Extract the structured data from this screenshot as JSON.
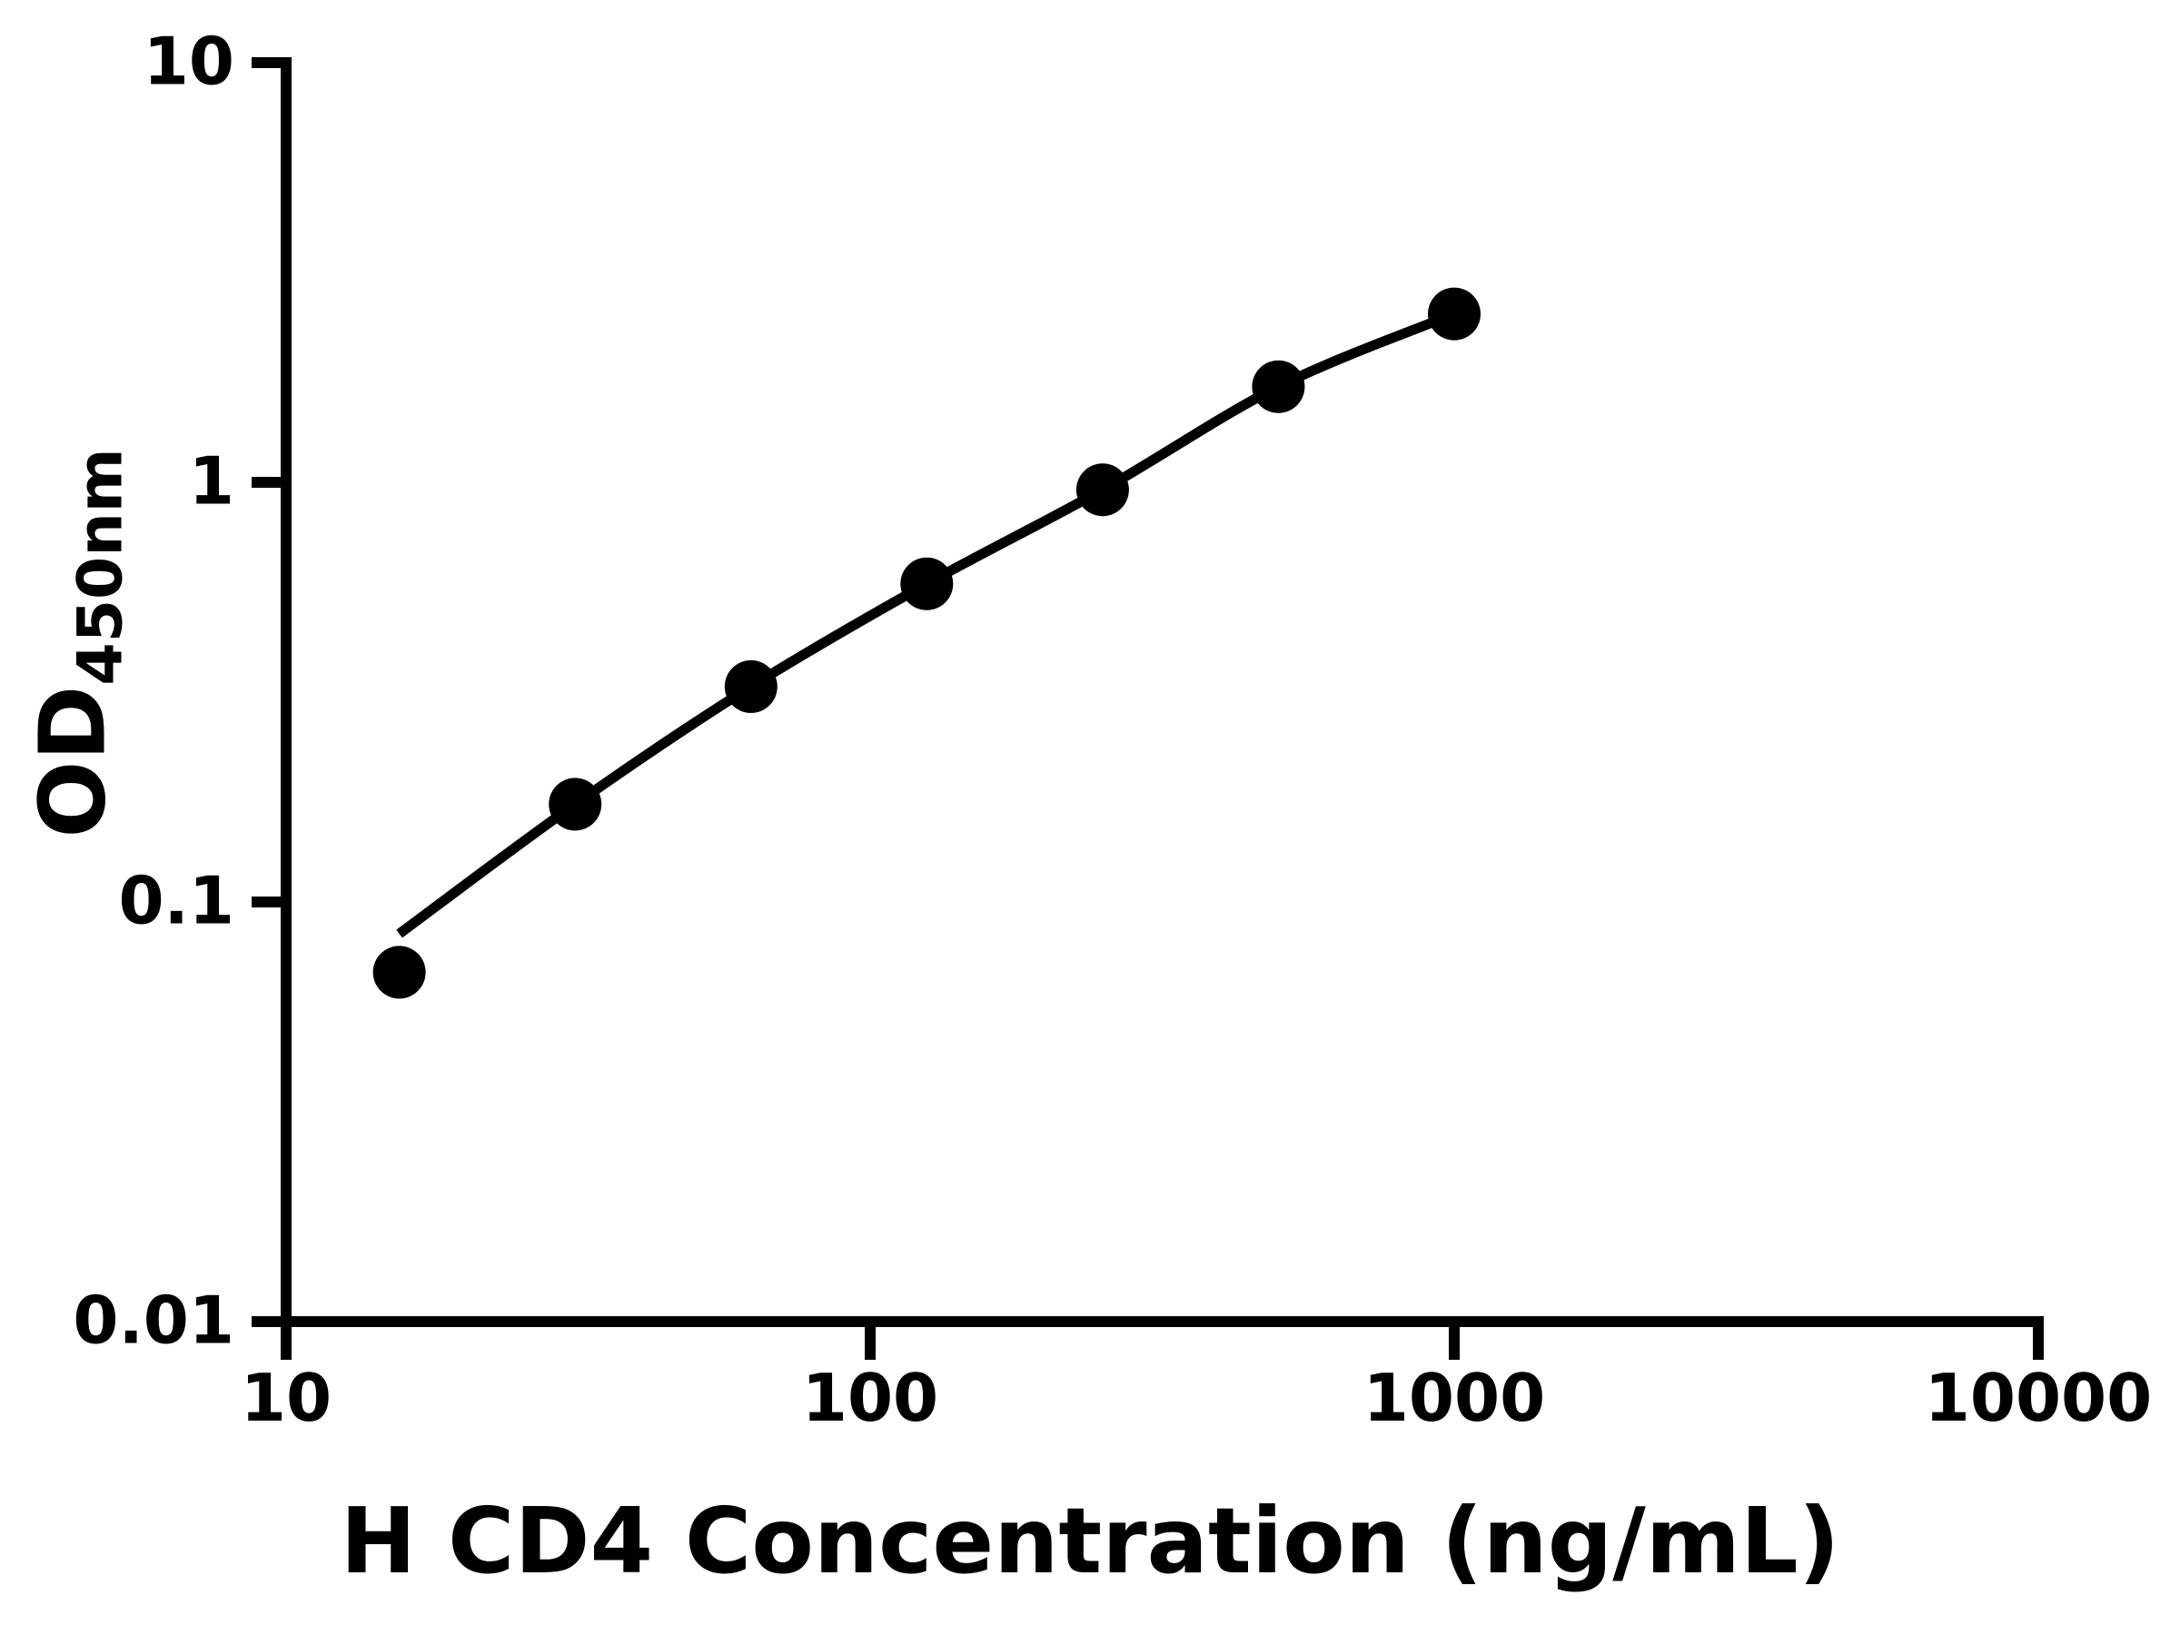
{
  "page": {
    "background": "#ffffff",
    "ink_color": "#000000"
  },
  "chart_data": {
    "type": "scatter",
    "subtype": "elisa-standard-curve",
    "xlabel": "H CD4 Concentration (ng/mL)",
    "ylabel_main": "OD",
    "ylabel_sub": "450nm",
    "x_scale": "log",
    "y_scale": "log",
    "xlim": [
      10,
      10000
    ],
    "ylim": [
      0.01,
      10
    ],
    "grid": "off",
    "legend": "none",
    "x_ticks": [
      {
        "value": 10,
        "label": "10"
      },
      {
        "value": 100,
        "label": "100"
      },
      {
        "value": 1000,
        "label": "1000"
      },
      {
        "value": 10000,
        "label": "10000"
      }
    ],
    "y_ticks": [
      {
        "value": 10,
        "label": "10"
      },
      {
        "value": 1,
        "label": "1"
      },
      {
        "value": 0.1,
        "label": "0.1"
      },
      {
        "value": 0.01,
        "label": "0.01"
      }
    ],
    "series": [
      {
        "name": "standard-points",
        "marker": "filled-circle",
        "color": "#000000",
        "points": [
          {
            "x": 15.625,
            "od": 0.068
          },
          {
            "x": 31.25,
            "od": 0.171
          },
          {
            "x": 62.5,
            "od": 0.326
          },
          {
            "x": 125,
            "od": 0.573
          },
          {
            "x": 250,
            "od": 0.96
          },
          {
            "x": 500,
            "od": 1.69
          },
          {
            "x": 1000,
            "od": 2.52
          }
        ]
      }
    ],
    "fit_curve": [
      {
        "x": 15.625,
        "od": 0.084
      },
      {
        "x": 31.25,
        "od": 0.171
      },
      {
        "x": 62.5,
        "od": 0.326
      },
      {
        "x": 125,
        "od": 0.573
      },
      {
        "x": 250,
        "od": 0.96
      },
      {
        "x": 500,
        "od": 1.69
      },
      {
        "x": 1000,
        "od": 2.52
      }
    ]
  }
}
